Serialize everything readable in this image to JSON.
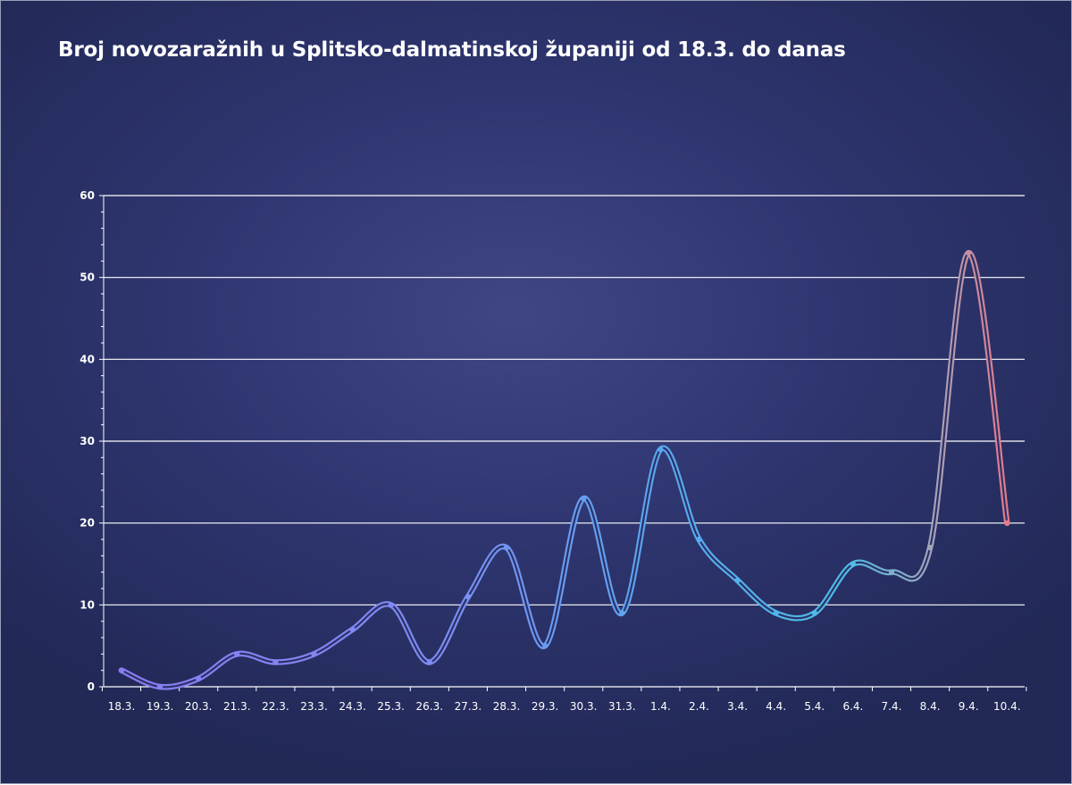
{
  "chart_data": {
    "type": "line",
    "title": "Broj novozaražnih u Splitsko-dalmatinskoj županiji od 18.3. do danas",
    "xlabel": "",
    "ylabel": "",
    "categories": [
      "18.3.",
      "19.3.",
      "20.3.",
      "21.3.",
      "22.3.",
      "23.3.",
      "24.3.",
      "25.3.",
      "26.3.",
      "27.3.",
      "28.3.",
      "29.3.",
      "30.3.",
      "31.3.",
      "1.4.",
      "2.4.",
      "3.4.",
      "4.4.",
      "5.4.",
      "6.4.",
      "7.4.",
      "8.4.",
      "9.4.",
      "10.4."
    ],
    "series": [
      {
        "values": [
          2,
          0,
          1,
          4,
          3,
          4,
          7,
          10,
          3,
          11,
          17,
          5,
          23,
          9,
          29,
          18,
          13,
          9,
          9,
          15,
          14,
          17,
          53,
          20
        ]
      }
    ],
    "ylim": [
      0,
      60
    ],
    "yticks": [
      0,
      10,
      20,
      30,
      40,
      50,
      60
    ],
    "grid": true,
    "legend": "none",
    "colors": {
      "background": "#2b3268",
      "grid": "#ffffff",
      "text": "#ffffff",
      "line_gradient": [
        "#8a7cf2",
        "#7f8bf3",
        "#5aa6ef",
        "#4dbde6",
        "#a8a3b8",
        "#e57a8a"
      ]
    }
  }
}
